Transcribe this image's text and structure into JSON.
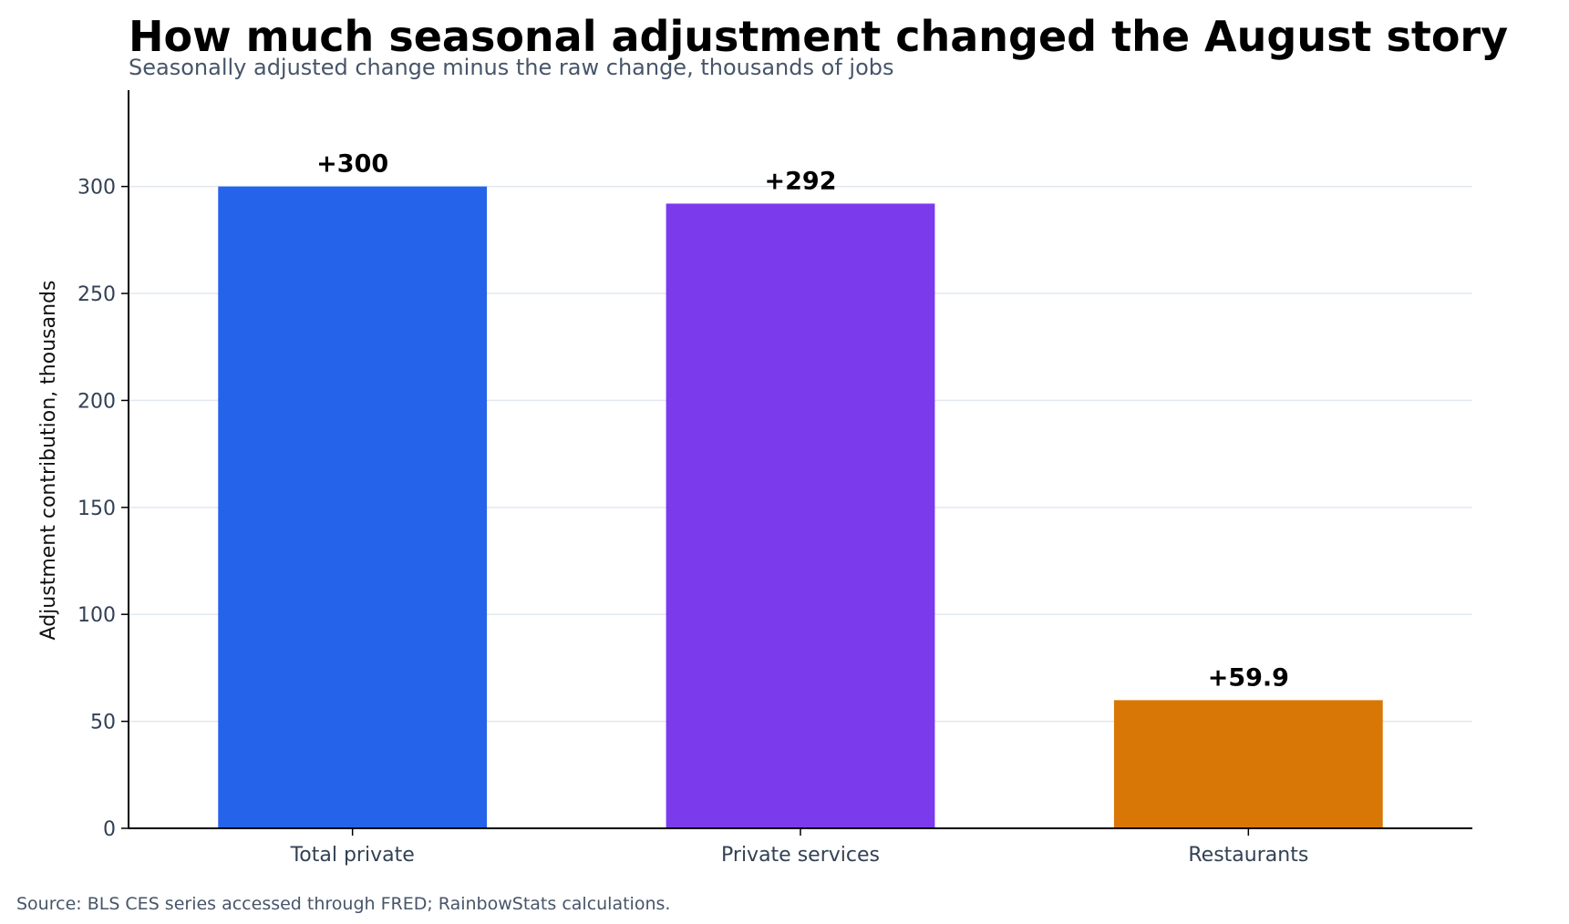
{
  "chart_data": {
    "type": "bar",
    "title": "How much seasonal adjustment changed the August story",
    "subtitle": "Seasonally adjusted change minus the raw change, thousands of jobs",
    "xlabel": "",
    "ylabel": "Adjustment contribution, thousands",
    "categories": [
      "Total private",
      "Private services",
      "Restaurants"
    ],
    "values": [
      300,
      292,
      59.9
    ],
    "data_labels": [
      "+300",
      "+292",
      "+59.9"
    ],
    "bar_colors": [
      "#2563eb",
      "#7c3aed",
      "#d97706"
    ],
    "ylim": [
      0,
      345
    ],
    "yticks": [
      0,
      50,
      100,
      150,
      200,
      250,
      300
    ],
    "ytick_labels": [
      "0",
      "50",
      "100",
      "150",
      "200",
      "250",
      "300"
    ],
    "grid": "horizontal",
    "legend": "none"
  },
  "footer": {
    "source": "Source: BLS CES series accessed through FRED; RainbowStats calculations."
  }
}
